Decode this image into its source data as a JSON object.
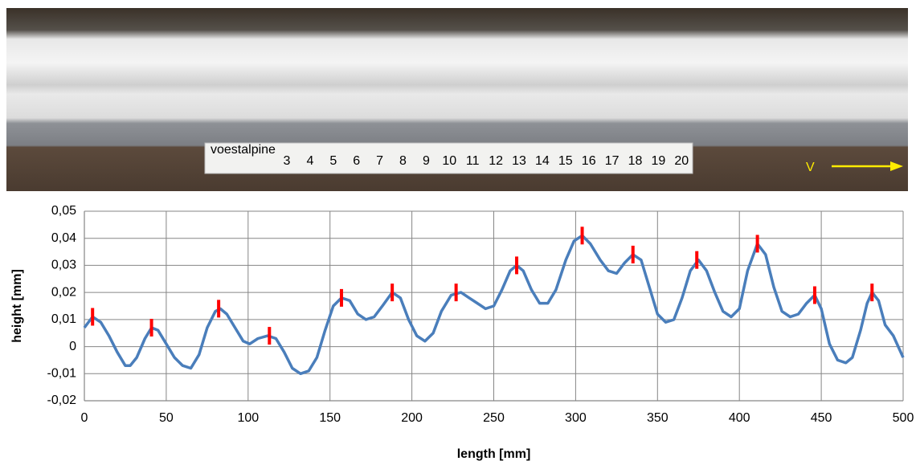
{
  "photo": {
    "brand": "voestalpine",
    "ruler_labels": [
      "3",
      "4",
      "5",
      "6",
      "7",
      "8",
      "9",
      "10",
      "11",
      "12",
      "13",
      "14",
      "15",
      "16",
      "17",
      "18",
      "19",
      "20"
    ],
    "direction_label": "V"
  },
  "chart_data": {
    "type": "line",
    "xlabel": "length [mm]",
    "ylabel": "height [mm]",
    "xlim": [
      0,
      500
    ],
    "xticks": [
      0,
      50,
      100,
      150,
      200,
      250,
      300,
      350,
      400,
      450,
      500
    ],
    "ylim": [
      -0.02,
      0.05
    ],
    "yticks": [
      {
        "value": -0.02,
        "label": "-0,02"
      },
      {
        "value": -0.01,
        "label": "-0,01"
      },
      0,
      {
        "value": 0.01,
        "label": "0,01"
      },
      {
        "value": 0.02,
        "label": "0,02"
      },
      {
        "value": 0.03,
        "label": "0,03"
      },
      {
        "value": 0.04,
        "label": "0,04"
      },
      {
        "value": 0.05,
        "label": "0,05"
      }
    ],
    "grid": true,
    "series": [
      {
        "color": "#4a7ebb",
        "x": [
          0,
          5,
          10,
          15,
          20,
          25,
          28,
          32,
          37,
          41,
          45,
          50,
          55,
          60,
          65,
          70,
          75,
          80,
          83,
          87,
          92,
          97,
          101,
          106,
          112,
          117,
          122,
          127,
          132,
          137,
          142,
          147,
          152,
          157,
          162,
          167,
          172,
          177,
          182,
          188,
          193,
          198,
          203,
          208,
          213,
          218,
          224,
          230,
          235,
          240,
          245,
          250,
          255,
          260,
          264,
          268,
          273,
          278,
          283,
          288,
          294,
          299,
          304,
          309,
          315,
          320,
          325,
          330,
          335,
          340,
          345,
          350,
          355,
          360,
          365,
          370,
          375,
          380,
          385,
          390,
          395,
          400,
          405,
          411,
          416,
          421,
          426,
          431,
          436,
          441,
          446,
          450,
          455,
          460,
          465,
          469,
          474,
          478,
          481,
          485,
          489,
          494,
          500
        ],
        "values": [
          0.007,
          0.011,
          0.009,
          0.004,
          -0.002,
          -0.007,
          -0.007,
          -0.004,
          0.003,
          0.007,
          0.006,
          0.001,
          -0.004,
          -0.007,
          -0.008,
          -0.003,
          0.007,
          0.013,
          0.014,
          0.012,
          0.007,
          0.002,
          0.001,
          0.003,
          0.004,
          0.003,
          -0.002,
          -0.008,
          -0.01,
          -0.009,
          -0.004,
          0.006,
          0.015,
          0.018,
          0.017,
          0.012,
          0.01,
          0.011,
          0.015,
          0.02,
          0.018,
          0.01,
          0.004,
          0.002,
          0.005,
          0.013,
          0.019,
          0.02,
          0.018,
          0.016,
          0.014,
          0.015,
          0.021,
          0.028,
          0.03,
          0.028,
          0.021,
          0.016,
          0.016,
          0.021,
          0.032,
          0.039,
          0.041,
          0.038,
          0.032,
          0.028,
          0.027,
          0.031,
          0.034,
          0.032,
          0.022,
          0.012,
          0.009,
          0.01,
          0.018,
          0.028,
          0.032,
          0.028,
          0.02,
          0.013,
          0.011,
          0.014,
          0.028,
          0.038,
          0.034,
          0.022,
          0.013,
          0.011,
          0.012,
          0.016,
          0.019,
          0.014,
          0.001,
          -0.005,
          -0.006,
          -0.004,
          0.006,
          0.016,
          0.02,
          0.017,
          0.008,
          0.004,
          -0.004
        ]
      },
      {
        "color": "#ff0000",
        "marker": "tick",
        "x": [
          5,
          41,
          82,
          113,
          157,
          188,
          227,
          264,
          304,
          335,
          374,
          411,
          446,
          481
        ],
        "values": [
          0.011,
          0.007,
          0.014,
          0.004,
          0.018,
          0.02,
          0.02,
          0.03,
          0.041,
          0.034,
          0.032,
          0.038,
          0.019,
          0.02
        ]
      }
    ]
  }
}
